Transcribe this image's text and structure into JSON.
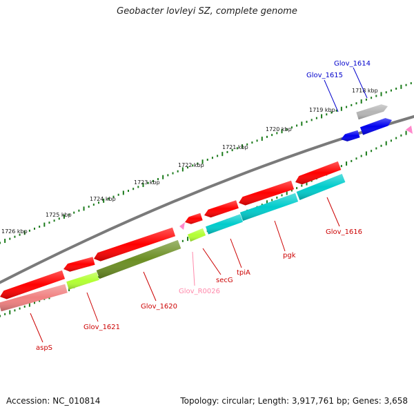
{
  "title": "Geobacter lovleyi SZ, complete genome",
  "accession": "Accession: NC_010814",
  "topology": "Topology: circular; Length: 3,917,761 bp; Genes: 3,658",
  "colors": {
    "backbone": "#7a7a7a",
    "tick": "#1a7a1a",
    "cds_red": "#ff0000",
    "cds_blue": "#0000ee",
    "cds_gray": "#b5b5b5",
    "cds_cyan": "#00cccc",
    "cds_lime": "#b2ff33",
    "cds_olive": "#6b8e23",
    "cds_pink": "#f08080",
    "rna_pink": "#ff88cc",
    "label_red": "#cc0000",
    "label_blue": "#0000cc",
    "label_pink": "#ff88aa"
  },
  "kbp_ticks": [
    "1718 kbp",
    "1719 kbp",
    "1720 kbp",
    "1721 kbp",
    "1722 kbp",
    "1723 kbp",
    "1724 kbp",
    "1725 kbp",
    "1726 kbp"
  ],
  "gene_labels": [
    {
      "text": "Glov_1614",
      "color": "blue"
    },
    {
      "text": "Glov_1615",
      "color": "blue"
    },
    {
      "text": "Glov_1616",
      "color": "red"
    },
    {
      "text": "pgk",
      "color": "red"
    },
    {
      "text": "tpiA",
      "color": "red"
    },
    {
      "text": "secG",
      "color": "red"
    },
    {
      "text": "Glov_R0026",
      "color": "pink"
    },
    {
      "text": "Glov_1620",
      "color": "red"
    },
    {
      "text": "Glov_1621",
      "color": "red"
    },
    {
      "text": "aspS",
      "color": "red"
    }
  ]
}
